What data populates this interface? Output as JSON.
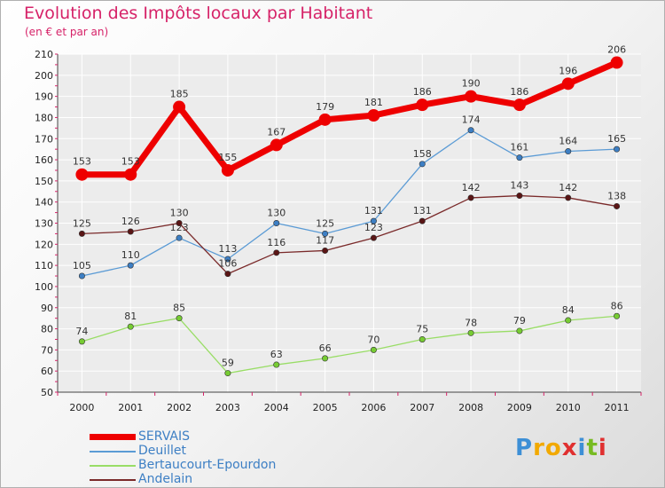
{
  "chart_data": {
    "type": "line",
    "title": "Evolution des Impôts locaux par Habitant",
    "subtitle": "(en € et par an)",
    "xlabel": "",
    "ylabel": "",
    "ylim": [
      50,
      210
    ],
    "yticks": [
      50,
      60,
      70,
      80,
      90,
      100,
      110,
      120,
      130,
      140,
      150,
      160,
      170,
      180,
      190,
      200,
      210
    ],
    "grid": true,
    "legend_position": "bottom-left",
    "x": [
      "2000",
      "2001",
      "2002",
      "2003",
      "2004",
      "2005",
      "2006",
      "2007",
      "2008",
      "2009",
      "2010",
      "2011"
    ],
    "series": [
      {
        "name": "SERVAIS",
        "color": "#ee0000",
        "marker": "#ee0000",
        "label_color": "#333333",
        "thick": true,
        "values": [
          153,
          153,
          185,
          155,
          167,
          179,
          181,
          186,
          190,
          186,
          196,
          206
        ]
      },
      {
        "name": "Deuillet",
        "color": "#5b9bd5",
        "marker": "#3d7fc4",
        "label_color": "#333333",
        "thick": false,
        "values": [
          105,
          110,
          123,
          113,
          130,
          125,
          131,
          158,
          174,
          161,
          164,
          165
        ]
      },
      {
        "name": "Bertaucourt-Epourdon",
        "color": "#99dd66",
        "marker": "#77cc33",
        "label_color": "#333333",
        "thick": false,
        "values": [
          74,
          81,
          85,
          59,
          63,
          66,
          70,
          75,
          78,
          79,
          84,
          86
        ]
      },
      {
        "name": "Andelain",
        "color": "#7a2a2a",
        "marker": "#5a1515",
        "label_color": "#333333",
        "thick": false,
        "values": [
          125,
          126,
          130,
          106,
          116,
          117,
          123,
          131,
          142,
          143,
          142,
          138
        ]
      }
    ]
  },
  "logo": {
    "letters": [
      "P",
      "r",
      "o",
      "x",
      "i",
      "t",
      "i"
    ],
    "colors": [
      "#3d8fd6",
      "#f2a900",
      "#f2a900",
      "#e03030",
      "#3d8fd6",
      "#77bb22",
      "#e03030"
    ]
  }
}
